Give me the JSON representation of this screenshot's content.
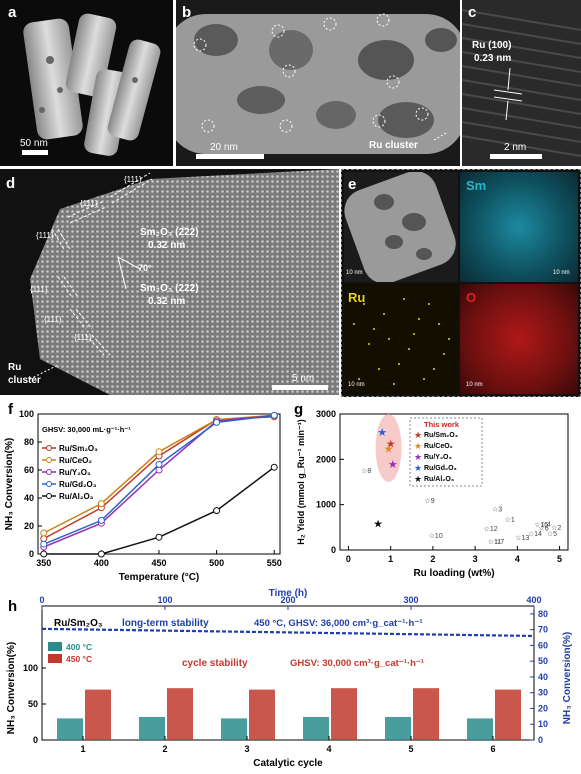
{
  "panels": {
    "a": {
      "label": "a",
      "scale": "50 nm"
    },
    "b": {
      "label": "b",
      "scale": "20 nm",
      "annotation": "Ru cluster"
    },
    "c": {
      "label": "c",
      "scale": "2 nm",
      "annotation_line1": "Ru (100)",
      "annotation_line2": "0.23 nm"
    },
    "d": {
      "label": "d",
      "scale": "5 nm",
      "plane1_line1": "Sm₂O₃ (2̄22)",
      "plane1_line2": "0.32 nm",
      "angle": "70°",
      "plane2_line1": "Sm₂O₃ (222)",
      "plane2_line2": "0.32 nm",
      "facet": "{111}",
      "cluster_line1": "Ru",
      "cluster_line2": "cluster"
    },
    "e": {
      "label": "e",
      "maps": [
        "Sm",
        "Ru",
        "O"
      ],
      "scale": "10 nm",
      "colors": {
        "Sm": "#2bb3c9",
        "Ru": "#e6d21c",
        "O": "#e02020"
      }
    },
    "f": {
      "label": "f"
    },
    "g": {
      "label": "g"
    },
    "h": {
      "label": "h"
    }
  },
  "chart_data": [
    {
      "panel": "f",
      "type": "line",
      "note": "GHSV: 30,000 mL·g⁻¹·h⁻¹",
      "xlabel": "Temperature (°C)",
      "ylabel": "NH₃ Conversion(%)",
      "x": [
        350,
        400,
        450,
        500,
        550
      ],
      "xlim": [
        345,
        555
      ],
      "ylim": [
        0,
        100
      ],
      "xticks": [
        "350",
        "400",
        "450",
        "500",
        "550"
      ],
      "yticks": [
        "0",
        "20",
        "40",
        "60",
        "80",
        "100"
      ],
      "legend_position": "left",
      "series": [
        {
          "name": "Ru/Sm₂O₃",
          "color": "#c0392b",
          "values": [
            11,
            33,
            70,
            96,
            98
          ]
        },
        {
          "name": "Ru/CeO₂",
          "color": "#c8841a",
          "values": [
            15,
            36,
            73,
            96,
            99
          ]
        },
        {
          "name": "Ru/Y₂O₃",
          "color": "#9b2fb5",
          "values": [
            5,
            22,
            60,
            95,
            99
          ]
        },
        {
          "name": "Ru/Gd₂O₃",
          "color": "#2a62c9",
          "values": [
            7,
            24,
            64,
            94,
            99
          ]
        },
        {
          "name": "Ru/Al₂O₃",
          "color": "#111111",
          "values": [
            0,
            0,
            12,
            31,
            62
          ]
        }
      ]
    },
    {
      "panel": "g",
      "type": "scatter",
      "xlabel": "Ru loading (wt%)",
      "ylabel": "H₂ Yield (mmol g_Ru⁻¹ min⁻¹)",
      "xlim": [
        -0.2,
        5.2
      ],
      "ylim": [
        0,
        3000
      ],
      "xticks": [
        "0",
        "1",
        "2",
        "3",
        "4",
        "5"
      ],
      "yticks": [
        "0",
        "1000",
        "2000",
        "3000"
      ],
      "legend_title": "This work",
      "legend_position": "top-right",
      "series": [
        {
          "name": "Ru/Sm₂O₃",
          "color": "#c0392b",
          "points": [
            [
              1.0,
              2350
            ]
          ]
        },
        {
          "name": "Ru/CeO₂",
          "color": "#e08a1e",
          "points": [
            [
              0.95,
              2240
            ]
          ]
        },
        {
          "name": "Ru/Y₂O₃",
          "color": "#9b2fb5",
          "points": [
            [
              1.05,
              1900
            ]
          ]
        },
        {
          "name": "Ru/Gd₂O₃",
          "color": "#2a62c9",
          "points": [
            [
              0.8,
              2600
            ]
          ]
        },
        {
          "name": "Ru/Al₂O₃",
          "color": "#111111",
          "points": [
            [
              0.7,
              590
            ]
          ]
        }
      ],
      "literature": [
        {
          "label": "8",
          "x": 0.3,
          "y": 1760
        },
        {
          "label": "9",
          "x": 1.8,
          "y": 1100
        },
        {
          "label": "10",
          "x": 1.9,
          "y": 330
        },
        {
          "label": "3",
          "x": 3.4,
          "y": 920
        },
        {
          "label": "1",
          "x": 3.7,
          "y": 680
        },
        {
          "label": "12",
          "x": 3.2,
          "y": 490
        },
        {
          "label": "11",
          "x": 3.3,
          "y": 200
        },
        {
          "label": "7",
          "x": 3.45,
          "y": 200
        },
        {
          "label": "13",
          "x": 3.95,
          "y": 290
        },
        {
          "label": "14",
          "x": 4.25,
          "y": 370
        },
        {
          "label": "15",
          "x": 4.4,
          "y": 570
        },
        {
          "label": "4",
          "x": 4.55,
          "y": 590
        },
        {
          "label": "6",
          "x": 4.5,
          "y": 500
        },
        {
          "label": "2",
          "x": 4.8,
          "y": 510
        },
        {
          "label": "5",
          "x": 4.7,
          "y": 380
        }
      ]
    },
    {
      "panel": "h",
      "type": "bar",
      "title_left": "Ru/Sm₂O₃",
      "annotation_stability": "long-term stability",
      "annotation_cond": "450 °C, GHSV: 36,000 cm³·g_cat⁻¹·h⁻¹",
      "annotation_cycle": "cycle stability",
      "annotation_cycle_cond": "GHSV: 30,000 cm³·g_cat⁻¹·h⁻¹",
      "xlabel": "Catalytic cycle",
      "x2label": "Time (h)",
      "ylabel": "NH₃ Conversion(%)",
      "y2label": "NH₃ Conversion(%)",
      "categories": [
        "1",
        "2",
        "3",
        "4",
        "5",
        "6"
      ],
      "ylim": [
        0,
        100
      ],
      "yticks": [
        "0",
        "50",
        "100"
      ],
      "y2lim": [
        0,
        85
      ],
      "y2ticks": [
        "0",
        "10",
        "20",
        "30",
        "40",
        "50",
        "60",
        "70",
        "80"
      ],
      "x2lim": [
        0,
        400
      ],
      "x2ticks": [
        "0",
        "100",
        "200",
        "300",
        "400"
      ],
      "legend_position": "left",
      "series": [
        {
          "name": "400 °C",
          "color": "#2a8c8c",
          "values": [
            30,
            32,
            30,
            32,
            32,
            30
          ]
        },
        {
          "name": "450 °C",
          "color": "#c0392b",
          "values": [
            70,
            72,
            70,
            72,
            72,
            70
          ]
        }
      ],
      "longterm": {
        "color": "#1f3fa8",
        "t_start": 0,
        "t_end": 400,
        "y_start": 70.5,
        "y_end": 66
      }
    }
  ]
}
